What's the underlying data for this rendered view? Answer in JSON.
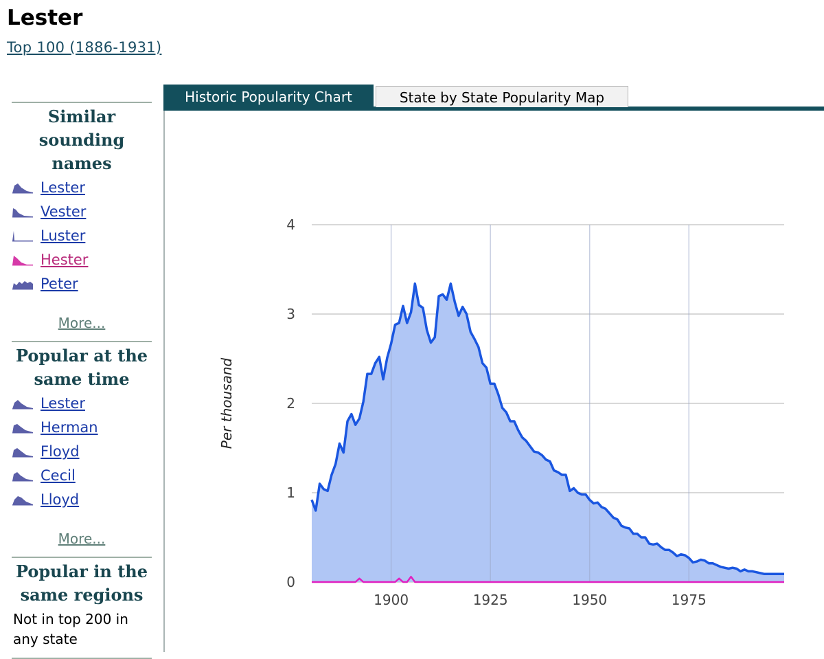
{
  "page": {
    "title": "Lester",
    "top_link": "Top 100 (1886-1931)"
  },
  "tabs": [
    {
      "label": "Historic Popularity Chart",
      "active": true
    },
    {
      "label": "State by State Popularity Map",
      "active": false
    }
  ],
  "sidebar": {
    "similar": {
      "title": "Similar sounding names",
      "items": [
        {
          "label": "Lester",
          "color": "#5b5fa8"
        },
        {
          "label": "Vester",
          "color": "#5b5fa8"
        },
        {
          "label": "Luster",
          "color": "#5b5fa8"
        },
        {
          "label": "Hester",
          "color": "#d63aa8"
        },
        {
          "label": "Peter",
          "color": "#5b5fa8"
        }
      ],
      "more": "More..."
    },
    "same_time": {
      "title": "Popular at the same time",
      "items": [
        {
          "label": "Lester",
          "color": "#5b5fa8"
        },
        {
          "label": "Herman",
          "color": "#5b5fa8"
        },
        {
          "label": "Floyd",
          "color": "#5b5fa8"
        },
        {
          "label": "Cecil",
          "color": "#5b5fa8"
        },
        {
          "label": "Lloyd",
          "color": "#5b5fa8"
        }
      ],
      "more": "More..."
    },
    "same_regions": {
      "title": "Popular in the same regions",
      "text": "Not in top 200 in any state"
    }
  },
  "chart_data": {
    "type": "area",
    "title": "",
    "xlabel": "",
    "ylabel": "Per thousand",
    "xlim": [
      1880,
      1999
    ],
    "ylim": [
      0,
      4
    ],
    "x_ticks": [
      1900,
      1925,
      1950,
      1975
    ],
    "y_ticks": [
      0,
      1,
      2,
      3,
      4
    ],
    "grid": true,
    "series": [
      {
        "color": "#1a56e0",
        "fill": "#b0c6f5",
        "x": [
          1880,
          1881,
          1882,
          1883,
          1884,
          1885,
          1886,
          1887,
          1888,
          1889,
          1890,
          1891,
          1892,
          1893,
          1894,
          1895,
          1896,
          1897,
          1898,
          1899,
          1900,
          1901,
          1902,
          1903,
          1904,
          1905,
          1906,
          1907,
          1908,
          1909,
          1910,
          1911,
          1912,
          1913,
          1914,
          1915,
          1916,
          1917,
          1918,
          1919,
          1920,
          1921,
          1922,
          1923,
          1924,
          1925,
          1926,
          1927,
          1928,
          1929,
          1930,
          1931,
          1932,
          1933,
          1934,
          1935,
          1936,
          1937,
          1938,
          1939,
          1940,
          1941,
          1942,
          1943,
          1944,
          1945,
          1946,
          1947,
          1948,
          1949,
          1950,
          1951,
          1952,
          1953,
          1954,
          1955,
          1956,
          1957,
          1958,
          1959,
          1960,
          1961,
          1962,
          1963,
          1964,
          1965,
          1966,
          1967,
          1968,
          1969,
          1970,
          1971,
          1972,
          1973,
          1974,
          1975,
          1976,
          1977,
          1978,
          1979,
          1980,
          1981,
          1982,
          1983,
          1984,
          1985,
          1986,
          1987,
          1988,
          1989,
          1990,
          1991,
          1992,
          1993,
          1994,
          1995,
          1996,
          1997,
          1998,
          1999
        ],
        "y": [
          0.92,
          0.8,
          1.1,
          1.04,
          1.02,
          1.2,
          1.32,
          1.55,
          1.45,
          1.8,
          1.88,
          1.76,
          1.83,
          2.02,
          2.33,
          2.33,
          2.45,
          2.52,
          2.27,
          2.51,
          2.67,
          2.88,
          2.9,
          3.09,
          2.9,
          3.02,
          3.34,
          3.1,
          3.07,
          2.82,
          2.68,
          2.74,
          3.2,
          3.22,
          3.16,
          3.34,
          3.14,
          2.98,
          3.08,
          3.0,
          2.8,
          2.72,
          2.63,
          2.45,
          2.4,
          2.22,
          2.22,
          2.1,
          1.95,
          1.9,
          1.8,
          1.8,
          1.7,
          1.62,
          1.58,
          1.52,
          1.46,
          1.45,
          1.42,
          1.37,
          1.35,
          1.25,
          1.23,
          1.2,
          1.2,
          1.02,
          1.05,
          1.0,
          0.98,
          0.98,
          0.92,
          0.88,
          0.89,
          0.84,
          0.82,
          0.77,
          0.72,
          0.7,
          0.63,
          0.61,
          0.6,
          0.54,
          0.54,
          0.5,
          0.5,
          0.43,
          0.42,
          0.43,
          0.39,
          0.36,
          0.36,
          0.33,
          0.29,
          0.31,
          0.3,
          0.27,
          0.22,
          0.23,
          0.25,
          0.24,
          0.21,
          0.21,
          0.19,
          0.17,
          0.16,
          0.15,
          0.16,
          0.15,
          0.12,
          0.14,
          0.12,
          0.12,
          0.11,
          0.1,
          0.09,
          0.09,
          0.09,
          0.09,
          0.09,
          0.09
        ]
      },
      {
        "color": "#e020c0",
        "x": [
          1880,
          1891,
          1892,
          1893,
          1894,
          1900,
          1901,
          1902,
          1903,
          1904,
          1905,
          1906,
          1907,
          1999
        ],
        "y": [
          0,
          0,
          0.04,
          0,
          0,
          0,
          0,
          0.04,
          0,
          0,
          0.06,
          0,
          0,
          0
        ]
      }
    ]
  }
}
